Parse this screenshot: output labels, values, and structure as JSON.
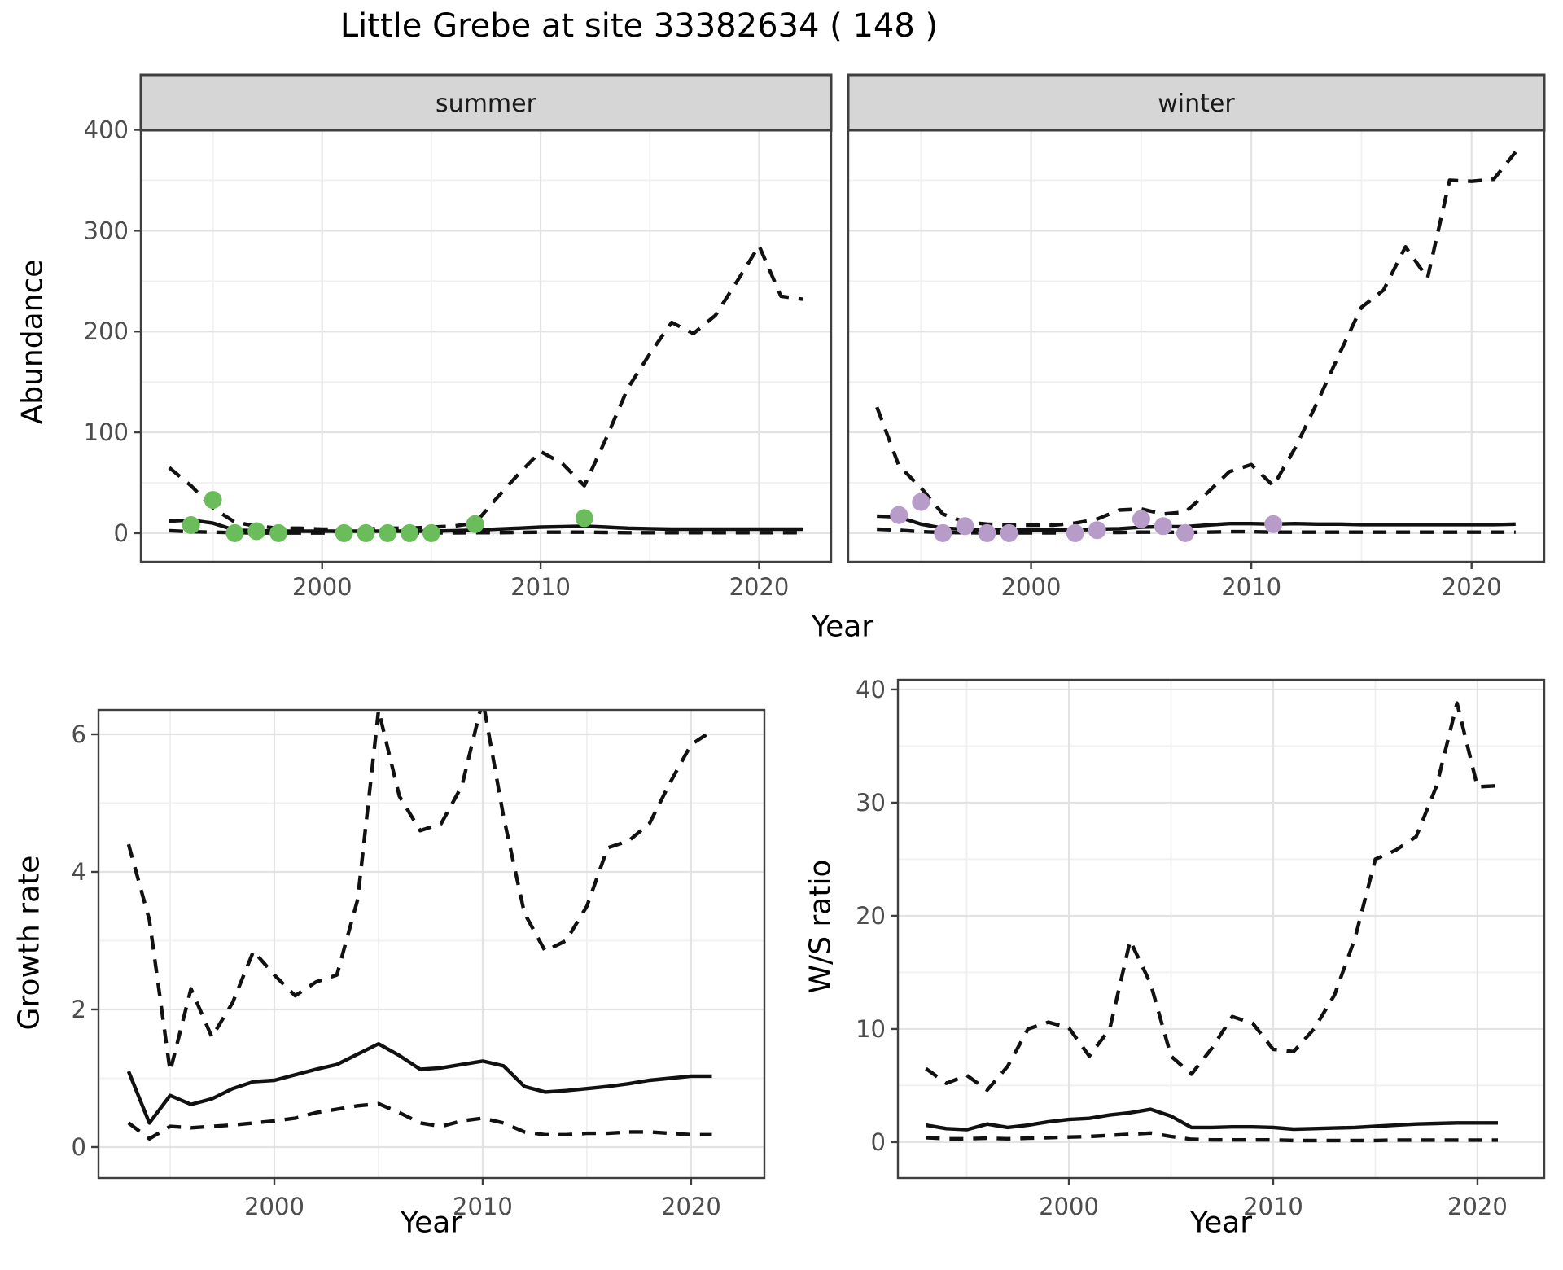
{
  "title": "Little Grebe at site 33382634 ( 148 )",
  "colors": {
    "point_summer": "#6BBD5B",
    "point_winter": "#B79BC9",
    "line": "#111111",
    "grid_major": "#E3E3E3",
    "grid_minor": "#F0F0F0",
    "strip_bg": "#D6D6D6",
    "panel_border": "#3F3F3F",
    "tick_label": "#4D4D4D",
    "background": "#FFFFFF"
  },
  "axis_labels": {
    "year": "Year",
    "abundance": "Abundance",
    "growth": "Growth rate",
    "ws": "W/S ratio"
  },
  "chart_data": [
    {
      "id": "abundance-summer",
      "type": "line",
      "facet_label": "summer",
      "xlabel": "Year",
      "ylabel": "Abundance",
      "xlim": [
        1991.7,
        2023.3
      ],
      "ylim": [
        -28.3,
        399.6
      ],
      "grid": true,
      "show_ytick_labels": true,
      "xticks": {
        "major": [
          2000,
          2010,
          2020
        ],
        "minor": [
          1995,
          2005,
          2015
        ],
        "labels": [
          "2000",
          "2010",
          "2020"
        ]
      },
      "yticks": {
        "major": [
          0,
          100,
          200,
          300,
          400
        ],
        "minor": [
          50,
          150,
          250,
          350
        ],
        "labels": [
          "0",
          "100",
          "200",
          "300",
          "400"
        ]
      },
      "x": [
        1993,
        1994,
        1995,
        1996,
        1997,
        1998,
        1999,
        2000,
        2001,
        2002,
        2003,
        2004,
        2005,
        2006,
        2007,
        2008,
        2009,
        2010,
        2011,
        2012,
        2013,
        2014,
        2015,
        2016,
        2017,
        2018,
        2019,
        2020,
        2021,
        2022
      ],
      "series": [
        {
          "name": "upper-ci",
          "style": "dashed",
          "values": [
            65,
            47,
            25,
            11,
            7,
            5,
            5,
            4,
            4,
            4,
            5,
            5,
            6,
            7,
            10,
            35,
            59,
            81,
            69,
            47,
            94,
            144,
            178,
            209,
            198,
            216,
            250,
            285,
            235,
            232
          ]
        },
        {
          "name": "median",
          "style": "solid",
          "values": [
            12,
            13,
            10,
            3,
            2.5,
            2,
            2,
            2,
            2,
            2,
            2,
            2,
            2,
            2.5,
            3,
            4,
            5,
            6,
            6.5,
            7,
            6,
            5,
            4.5,
            4,
            4,
            4,
            4,
            4,
            4,
            4
          ]
        },
        {
          "name": "lower-ci",
          "style": "dashed",
          "values": [
            2.5,
            1.5,
            1,
            0.5,
            0.3,
            0.2,
            0.2,
            0.2,
            0.2,
            0.2,
            0.2,
            0.3,
            0.3,
            0.3,
            0.5,
            0.5,
            0.8,
            1,
            1,
            1,
            0.8,
            0.5,
            0.5,
            0.5,
            0.5,
            0.5,
            0.5,
            0.5,
            0.5,
            0.5
          ]
        }
      ],
      "points": {
        "name": "observed-counts-summer",
        "color_key": "point_summer",
        "x": [
          1994,
          1995,
          1996,
          1997,
          1998,
          2001,
          2002,
          2003,
          2004,
          2005,
          2007,
          2012
        ],
        "y": [
          8,
          33,
          0,
          2,
          0,
          0,
          0,
          0,
          0,
          0,
          9,
          15
        ]
      }
    },
    {
      "id": "abundance-winter",
      "type": "line",
      "facet_label": "winter",
      "xlabel": "Year",
      "ylabel": "Abundance",
      "xlim": [
        1991.7,
        2023.3
      ],
      "ylim": [
        -28.3,
        399.6
      ],
      "grid": true,
      "show_ytick_labels": false,
      "xticks": {
        "major": [
          2000,
          2010,
          2020
        ],
        "minor": [
          1995,
          2005,
          2015
        ],
        "labels": [
          "2000",
          "2010",
          "2020"
        ]
      },
      "yticks": {
        "major": [
          0,
          100,
          200,
          300,
          400
        ],
        "minor": [
          50,
          150,
          250,
          350
        ],
        "labels": [
          "0",
          "100",
          "200",
          "300",
          "400"
        ]
      },
      "x": [
        1993,
        1994,
        1995,
        1996,
        1997,
        1998,
        1999,
        2000,
        2001,
        2002,
        2003,
        2004,
        2005,
        2006,
        2007,
        2008,
        2009,
        2010,
        2011,
        2012,
        2013,
        2014,
        2015,
        2016,
        2017,
        2018,
        2019,
        2020,
        2021,
        2022
      ],
      "series": [
        {
          "name": "upper-ci",
          "style": "dashed",
          "values": [
            125,
            67,
            45,
            19,
            11,
            9,
            8,
            8,
            8,
            10,
            14,
            23,
            24,
            19,
            21,
            40,
            61,
            68,
            47,
            85,
            130,
            178,
            224,
            241,
            284,
            253,
            350,
            349,
            351,
            378
          ]
        },
        {
          "name": "median",
          "style": "solid",
          "values": [
            17,
            16,
            9,
            5,
            4,
            3,
            3,
            3,
            3,
            3,
            4,
            4.5,
            6,
            6.5,
            6.5,
            8,
            9.5,
            9.5,
            9,
            9.5,
            9,
            9,
            8.5,
            8.5,
            8.5,
            8.5,
            8.5,
            8.5,
            8.5,
            9
          ]
        },
        {
          "name": "lower-ci",
          "style": "dashed",
          "values": [
            4,
            3,
            1.5,
            0.8,
            0.5,
            0.3,
            0.3,
            0.3,
            0.3,
            0.3,
            0.5,
            0.8,
            1,
            1,
            0.8,
            1,
            1.5,
            1.5,
            1,
            1,
            1,
            1,
            1,
            1,
            1,
            1,
            1,
            1,
            1,
            1
          ]
        }
      ],
      "points": {
        "name": "observed-counts-winter",
        "color_key": "point_winter",
        "x": [
          1994,
          1995,
          1996,
          1997,
          1998,
          1999,
          2002,
          2003,
          2005,
          2006,
          2007,
          2011
        ],
        "y": [
          18,
          31,
          0,
          7,
          0,
          0,
          0,
          3,
          14,
          7,
          0,
          9
        ]
      }
    },
    {
      "id": "growth-rate",
      "type": "line",
      "facet_label": null,
      "xlabel": "Year",
      "ylabel": "Growth rate",
      "xlim": [
        1991.56,
        2023.52
      ],
      "ylim": [
        -0.45,
        6.355
      ],
      "grid": true,
      "show_ytick_labels": true,
      "xticks": {
        "major": [
          2000,
          2010,
          2020
        ],
        "minor": [
          1995,
          2005,
          2015
        ],
        "labels": [
          "2000",
          "2010",
          "2020"
        ]
      },
      "yticks": {
        "major": [
          0,
          2,
          4,
          6
        ],
        "minor": [
          1,
          3,
          5
        ],
        "labels": [
          "0",
          "2",
          "4",
          "6"
        ]
      },
      "x": [
        1993,
        1994,
        1995,
        1996,
        1997,
        1998,
        1999,
        2000,
        2001,
        2002,
        2003,
        2004,
        2005,
        2006,
        2007,
        2008,
        2009,
        2010,
        2011,
        2012,
        2013,
        2014,
        2015,
        2016,
        2017,
        2018,
        2019,
        2020,
        2021
      ],
      "series": [
        {
          "name": "upper-ci",
          "style": "dashed",
          "values": [
            4.4,
            3.3,
            1.1,
            2.3,
            1.6,
            2.1,
            2.85,
            2.5,
            2.2,
            2.4,
            2.5,
            3.6,
            6.35,
            5.1,
            4.6,
            4.7,
            5.25,
            6.5,
            4.8,
            3.4,
            2.85,
            3.0,
            3.5,
            4.35,
            4.45,
            4.7,
            5.3,
            5.85,
            6.05
          ]
        },
        {
          "name": "median",
          "style": "solid",
          "values": [
            1.1,
            0.35,
            0.75,
            0.62,
            0.7,
            0.85,
            0.95,
            0.97,
            1.05,
            1.13,
            1.2,
            1.35,
            1.5,
            1.33,
            1.13,
            1.15,
            1.2,
            1.25,
            1.18,
            0.88,
            0.8,
            0.82,
            0.85,
            0.88,
            0.92,
            0.97,
            1.0,
            1.03,
            1.03
          ]
        },
        {
          "name": "lower-ci",
          "style": "dashed",
          "values": [
            0.35,
            0.12,
            0.3,
            0.28,
            0.3,
            0.32,
            0.35,
            0.38,
            0.42,
            0.5,
            0.55,
            0.6,
            0.63,
            0.5,
            0.35,
            0.3,
            0.38,
            0.42,
            0.35,
            0.22,
            0.18,
            0.18,
            0.2,
            0.2,
            0.22,
            0.22,
            0.2,
            0.18,
            0.18
          ]
        }
      ],
      "points": null
    },
    {
      "id": "ws-ratio",
      "type": "line",
      "facet_label": null,
      "xlabel": "Year",
      "ylabel": "W/S ratio",
      "xlim": [
        1991.63,
        2023.27
      ],
      "ylim": [
        -3.17,
        40.86
      ],
      "grid": true,
      "show_ytick_labels": true,
      "xticks": {
        "major": [
          2000,
          2010,
          2020
        ],
        "minor": [
          1995,
          2005,
          2015
        ],
        "labels": [
          "2000",
          "2010",
          "2020"
        ]
      },
      "yticks": {
        "major": [
          0,
          10,
          20,
          30,
          40
        ],
        "minor": [
          5,
          15,
          25,
          35
        ],
        "labels": [
          "0",
          "10",
          "20",
          "30",
          "40"
        ]
      },
      "x": [
        1993,
        1994,
        1995,
        1996,
        1997,
        1998,
        1999,
        2000,
        2001,
        2002,
        2003,
        2004,
        2005,
        2006,
        2007,
        2008,
        2009,
        2010,
        2011,
        2012,
        2013,
        2014,
        2015,
        2016,
        2017,
        2018,
        2019,
        2020,
        2021
      ],
      "series": [
        {
          "name": "upper-ci",
          "style": "dashed",
          "values": [
            6.5,
            5.2,
            5.9,
            4.6,
            6.7,
            10.0,
            10.6,
            10.1,
            7.6,
            10.0,
            17.8,
            14.0,
            7.6,
            6.0,
            8.3,
            11.1,
            10.5,
            8.2,
            8.0,
            10.0,
            13.0,
            18.0,
            25.0,
            25.8,
            27.0,
            31.5,
            38.8,
            31.4,
            31.5
          ]
        },
        {
          "name": "median",
          "style": "solid",
          "values": [
            1.5,
            1.2,
            1.1,
            1.6,
            1.3,
            1.5,
            1.8,
            2.0,
            2.1,
            2.4,
            2.6,
            2.9,
            2.3,
            1.3,
            1.3,
            1.35,
            1.35,
            1.3,
            1.15,
            1.2,
            1.25,
            1.3,
            1.4,
            1.5,
            1.6,
            1.65,
            1.7,
            1.7,
            1.7
          ]
        },
        {
          "name": "lower-ci",
          "style": "dashed",
          "values": [
            0.4,
            0.3,
            0.3,
            0.35,
            0.3,
            0.35,
            0.4,
            0.45,
            0.5,
            0.6,
            0.7,
            0.8,
            0.5,
            0.25,
            0.2,
            0.2,
            0.2,
            0.2,
            0.15,
            0.15,
            0.15,
            0.15,
            0.15,
            0.18,
            0.18,
            0.18,
            0.18,
            0.18,
            0.18
          ]
        }
      ],
      "points": null
    }
  ]
}
